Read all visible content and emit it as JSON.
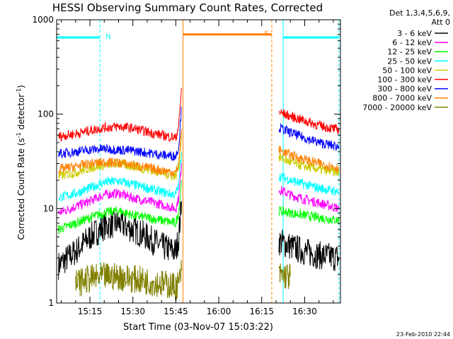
{
  "chart_data": {
    "type": "line",
    "title": "HESSI Observing Summary Count Rates, Corrected",
    "xlabel": "Start Time (03-Nov-07 15:03:22)",
    "ylabel_main": "Corrected Count Rate (s",
    "ylabel_sup1": "-1",
    "ylabel_mid": " detector",
    "ylabel_sup2": "-1",
    "ylabel_end": ")",
    "y_scale": "log",
    "ylim": [
      1,
      1000
    ],
    "y_ticks": [
      1,
      10,
      100,
      1000
    ],
    "y_tick_labels": [
      "1",
      "10",
      "100",
      "1000"
    ],
    "xlim": [
      "15:03:22",
      "16:42:30"
    ],
    "x_ticks": [
      "15:15",
      "15:30",
      "15:45",
      "16:00",
      "16:15",
      "16:30"
    ],
    "x_tick_labels": [
      "15:15",
      "15:30",
      "15:45",
      "16:00",
      "16:15",
      "16:30"
    ],
    "legend_header": [
      "Det 1,3,4,5,6,9,",
      "Att 0"
    ],
    "legend_position": "right",
    "timestamp": "23-Feb-2010 22:44",
    "data_gap": {
      "start": "15:47:30",
      "end": "16:20:30"
    },
    "flags": [
      {
        "label": "N",
        "color": "#00ffff",
        "level": 650,
        "segments": [
          [
            "15:03:22",
            "15:18:30"
          ],
          [
            "16:22:30",
            "16:42:00"
          ]
        ],
        "markers": [
          "15:03:22",
          "15:18:30",
          "16:22:30",
          "16:42:00"
        ]
      },
      {
        "label": "S",
        "color": "#ff8000",
        "level": 700,
        "segments": [
          [
            "15:47:30",
            "16:18:30"
          ]
        ],
        "markers": [
          "15:47:30",
          "16:18:30"
        ]
      }
    ],
    "series": [
      {
        "name": "3 - 6 keV",
        "color": "#000000",
        "points": [
          [
            "15:04",
            2.5
          ],
          [
            "15:10",
            3.5
          ],
          [
            "15:15",
            5
          ],
          [
            "15:20",
            6.5
          ],
          [
            "15:25",
            7
          ],
          [
            "15:30",
            6
          ],
          [
            "15:35",
            5
          ],
          [
            "15:40",
            4
          ],
          [
            "15:45",
            3.5
          ],
          [
            "15:46",
            5
          ],
          [
            "15:47",
            12
          ],
          [
            "16:21",
            4.5
          ],
          [
            "16:25",
            4
          ],
          [
            "16:30",
            3.5
          ],
          [
            "16:35",
            3.2
          ],
          [
            "16:42",
            3.0
          ]
        ]
      },
      {
        "name": "6 - 12 keV",
        "color": "#ff00ff",
        "points": [
          [
            "15:04",
            9
          ],
          [
            "15:10",
            10.5
          ],
          [
            "15:15",
            12
          ],
          [
            "15:20",
            14
          ],
          [
            "15:25",
            14.5
          ],
          [
            "15:30",
            13
          ],
          [
            "15:35",
            12
          ],
          [
            "15:40",
            11
          ],
          [
            "15:45",
            10
          ],
          [
            "15:46",
            13
          ],
          [
            "15:47",
            30
          ],
          [
            "16:21",
            16
          ],
          [
            "16:25",
            14
          ],
          [
            "16:30",
            12.5
          ],
          [
            "16:35",
            11.5
          ],
          [
            "16:42",
            10
          ]
        ]
      },
      {
        "name": "12 - 25 keV",
        "color": "#00ff00",
        "points": [
          [
            "15:04",
            6
          ],
          [
            "15:10",
            7
          ],
          [
            "15:15",
            8
          ],
          [
            "15:20",
            9
          ],
          [
            "15:25",
            9.5
          ],
          [
            "15:30",
            8.5
          ],
          [
            "15:35",
            8
          ],
          [
            "15:40",
            7.5
          ],
          [
            "15:45",
            7
          ],
          [
            "15:46",
            9
          ],
          [
            "15:47",
            20
          ],
          [
            "16:21",
            9.5
          ],
          [
            "16:25",
            9
          ],
          [
            "16:30",
            8.5
          ],
          [
            "16:35",
            8
          ],
          [
            "16:42",
            7.5
          ]
        ]
      },
      {
        "name": "25 - 50 keV",
        "color": "#00ffff",
        "points": [
          [
            "15:04",
            13
          ],
          [
            "15:10",
            14.5
          ],
          [
            "15:15",
            16.5
          ],
          [
            "15:20",
            19
          ],
          [
            "15:25",
            19.5
          ],
          [
            "15:30",
            18
          ],
          [
            "15:35",
            16.5
          ],
          [
            "15:40",
            15
          ],
          [
            "15:45",
            14
          ],
          [
            "15:46",
            18
          ],
          [
            "15:47",
            40
          ],
          [
            "16:21",
            22
          ],
          [
            "16:25",
            20
          ],
          [
            "16:30",
            18
          ],
          [
            "16:35",
            16.5
          ],
          [
            "16:42",
            15
          ]
        ]
      },
      {
        "name": "50 - 100 keV",
        "color": "#cccc00",
        "points": [
          [
            "15:04",
            22
          ],
          [
            "15:10",
            24
          ],
          [
            "15:15",
            27
          ],
          [
            "15:20",
            29
          ],
          [
            "15:25",
            30
          ],
          [
            "15:30",
            28
          ],
          [
            "15:35",
            26
          ],
          [
            "15:40",
            24
          ],
          [
            "15:45",
            22
          ],
          [
            "15:46",
            28
          ],
          [
            "15:47",
            60
          ],
          [
            "16:21",
            35
          ],
          [
            "16:25",
            31
          ],
          [
            "16:30",
            28
          ],
          [
            "16:35",
            26
          ],
          [
            "16:42",
            24
          ]
        ]
      },
      {
        "name": "100 - 300 keV",
        "color": "#ff0000",
        "points": [
          [
            "15:04",
            58
          ],
          [
            "15:10",
            62
          ],
          [
            "15:15",
            67
          ],
          [
            "15:20",
            72
          ],
          [
            "15:25",
            74
          ],
          [
            "15:30",
            71
          ],
          [
            "15:35",
            65
          ],
          [
            "15:40",
            60
          ],
          [
            "15:45",
            56
          ],
          [
            "15:46",
            75
          ],
          [
            "15:47",
            190
          ],
          [
            "16:21",
            105
          ],
          [
            "16:25",
            95
          ],
          [
            "16:30",
            85
          ],
          [
            "16:35",
            76
          ],
          [
            "16:42",
            68
          ]
        ]
      },
      {
        "name": "300 - 800 keV",
        "color": "#0000ff",
        "points": [
          [
            "15:04",
            38
          ],
          [
            "15:10",
            40
          ],
          [
            "15:15",
            42
          ],
          [
            "15:20",
            43
          ],
          [
            "15:25",
            42
          ],
          [
            "15:30",
            41
          ],
          [
            "15:35",
            39
          ],
          [
            "15:40",
            37
          ],
          [
            "15:45",
            36
          ],
          [
            "15:46",
            45
          ],
          [
            "15:47",
            120
          ],
          [
            "16:21",
            72
          ],
          [
            "16:25",
            64
          ],
          [
            "16:30",
            56
          ],
          [
            "16:35",
            50
          ],
          [
            "16:42",
            45
          ]
        ]
      },
      {
        "name": "800 - 7000 keV",
        "color": "#ff8000",
        "points": [
          [
            "15:04",
            26
          ],
          [
            "15:10",
            28
          ],
          [
            "15:15",
            30
          ],
          [
            "15:20",
            31
          ],
          [
            "15:25",
            30.5
          ],
          [
            "15:30",
            29
          ],
          [
            "15:35",
            27
          ],
          [
            "15:40",
            25.5
          ],
          [
            "15:45",
            24
          ],
          [
            "15:46",
            30
          ],
          [
            "15:47",
            70
          ],
          [
            "16:21",
            42
          ],
          [
            "16:25",
            37
          ],
          [
            "16:30",
            33
          ],
          [
            "16:35",
            30
          ],
          [
            "16:42",
            27
          ]
        ]
      },
      {
        "name": "7000 - 20000 keV",
        "color": "#808000",
        "points": [
          [
            "15:10",
            1.6
          ],
          [
            "15:15",
            1.8
          ],
          [
            "15:20",
            1.9
          ],
          [
            "15:25",
            1.9
          ],
          [
            "15:30",
            1.8
          ],
          [
            "15:35",
            1.7
          ],
          [
            "15:40",
            1.6
          ],
          [
            "15:45",
            1.5
          ],
          [
            "15:46",
            1.6
          ],
          [
            "15:47",
            2.2
          ],
          [
            "16:21",
            2.0
          ],
          [
            "16:25",
            1.9
          ]
        ]
      }
    ]
  }
}
